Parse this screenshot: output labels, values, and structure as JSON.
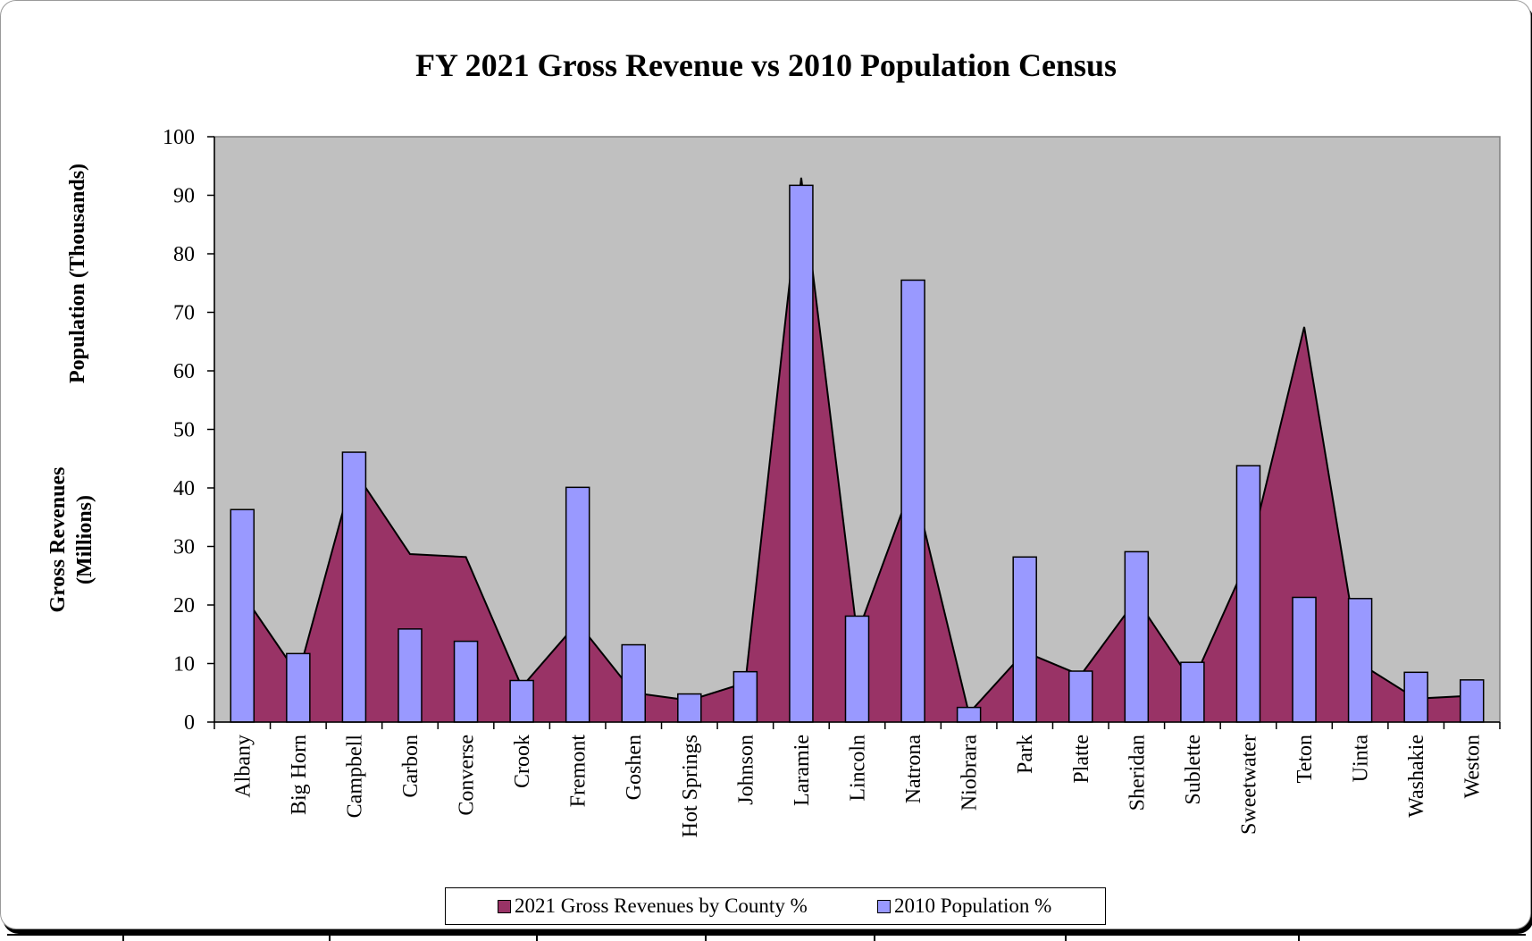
{
  "chart_data": {
    "type": "bar+area",
    "title": "FY 2021 Gross Revenue vs 2010 Population Census",
    "ylabel_population": "Population (Thousands)",
    "ylabel_revenue": "Gross Revenues (Millions)",
    "ylim": [
      0,
      100
    ],
    "yticks": [
      0,
      10,
      20,
      30,
      40,
      50,
      60,
      70,
      80,
      90,
      100
    ],
    "grid": false,
    "legend_position": "bottom",
    "categories": [
      "Albany",
      "Big Horn",
      "Campbell",
      "Carbon",
      "Converse",
      "Crook",
      "Fremont",
      "Goshen",
      "Hot Springs",
      "Johnson",
      "Laramie",
      "Lincoln",
      "Natrona",
      "Niobrara",
      "Park",
      "Platte",
      "Sheridan",
      "Sublette",
      "Sweetwater",
      "Teton",
      "Uinta",
      "Washakie",
      "Weston"
    ],
    "series": [
      {
        "name": "2021 Gross Revenues by County %",
        "kind": "area",
        "color": "#993366",
        "values": [
          22,
          8,
          43,
          28.7,
          28.2,
          6,
          17,
          5,
          3.7,
          6.7,
          93,
          15,
          41,
          1.5,
          12,
          8,
          21,
          6.7,
          28,
          67.5,
          10,
          4,
          4.5
        ]
      },
      {
        "name": "2010 Population %",
        "kind": "bar",
        "color": "#9999FF",
        "values": [
          36.3,
          11.7,
          46.1,
          15.9,
          13.8,
          7.1,
          40.1,
          13.2,
          4.8,
          8.6,
          91.7,
          18.1,
          75.5,
          2.5,
          28.2,
          8.7,
          29.1,
          10.2,
          43.8,
          21.3,
          21.1,
          8.5,
          7.2
        ]
      }
    ]
  },
  "legend": {
    "item1_label": "2021 Gross Revenues by County %",
    "item2_label": "2010 Population %"
  },
  "colors": {
    "plot_background": "#C0C0C0",
    "revenue": "#993366",
    "population": "#9999FF"
  }
}
